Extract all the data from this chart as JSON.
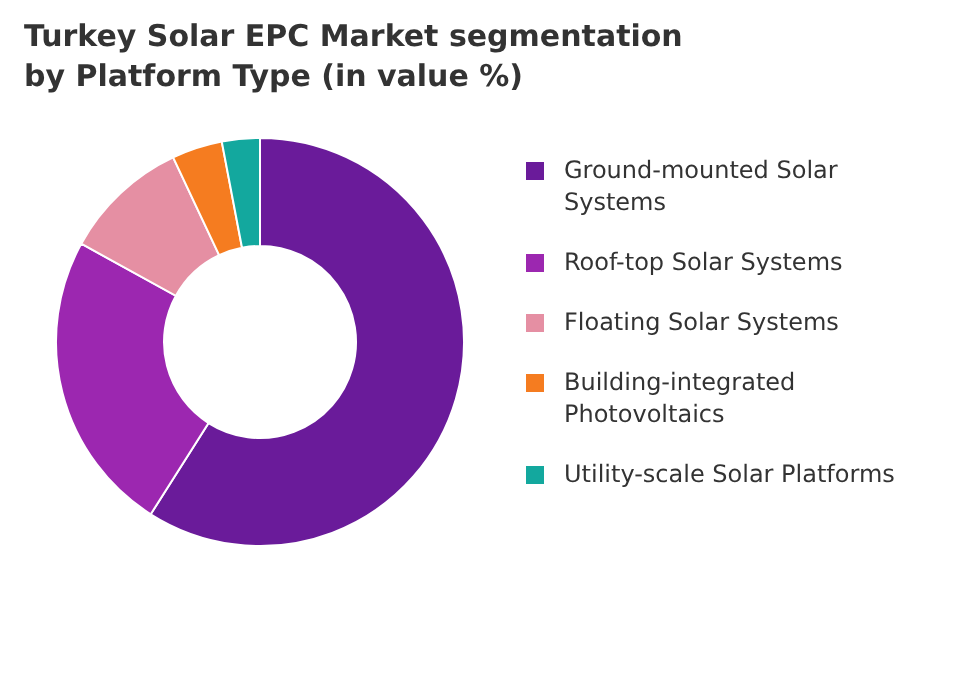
{
  "chart_data": {
    "type": "donut",
    "title": "Turkey Solar EPC Market segmentation by Platform Type (in value %)",
    "categories": [
      "Ground-mounted Solar Systems",
      "Roof-top Solar Systems",
      "Floating Solar Systems",
      "Building-integrated Photovoltaics",
      "Utility-scale Solar Platforms"
    ],
    "values": [
      59,
      24,
      10,
      4,
      3
    ],
    "colors": [
      "#6a1b9a",
      "#9c27b0",
      "#e58fa3",
      "#f57c20",
      "#13a89e"
    ],
    "legend": "right"
  }
}
